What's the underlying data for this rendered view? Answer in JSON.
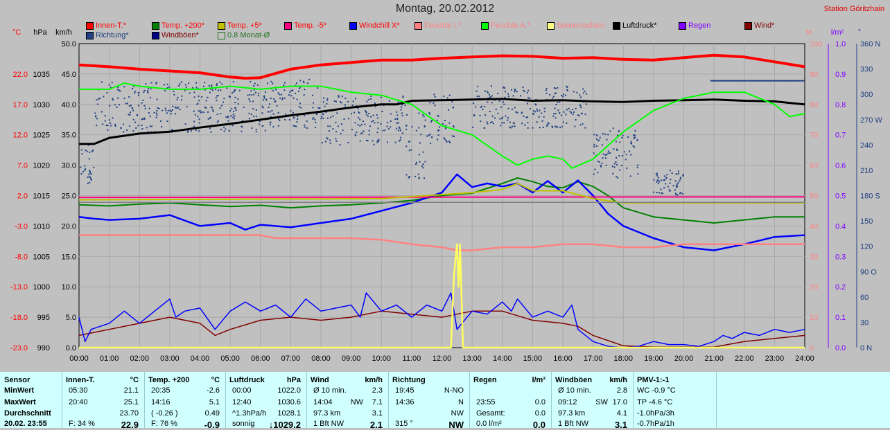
{
  "title": "Montag, 20.02.2012",
  "station": "Station Göritzhain",
  "legend": [
    {
      "label": "Innen-T.*",
      "color": "#ff0000",
      "text_color": "#ff0000"
    },
    {
      "label": "Temp. +200*",
      "color": "#008000",
      "text_color": "#ff0000"
    },
    {
      "label": "Temp. +5*",
      "color": "#c0c000",
      "text_color": "#ff0000"
    },
    {
      "label": "Temp. -5*",
      "color": "#ff0080",
      "text_color": "#ff0000"
    },
    {
      "label": "Windchill X*",
      "color": "#0000ff",
      "text_color": "#ff0000"
    },
    {
      "label": "Feuchte I.*",
      "color": "#ff8080",
      "text_color": "#ff8080"
    },
    {
      "label": "Feuchte A.*",
      "color": "#00ff00",
      "text_color": "#ff8080"
    },
    {
      "label": "Sonnenschein",
      "color": "#ffff80",
      "text_color": "#ff8080"
    },
    {
      "label": "Luftdruck*",
      "color": "#000000",
      "text_color": "#000000"
    },
    {
      "label": "Regen",
      "color": "#8000ff",
      "text_color": "#8000ff"
    },
    {
      "label": "Wind*",
      "color": "#800000",
      "text_color": "#800000"
    },
    {
      "label": "Richtung*",
      "color": "#204080",
      "text_color": "#204080"
    },
    {
      "label": "Windböen*",
      "color": "#000080",
      "text_color": "#800000"
    },
    {
      "label": "0.8 Monat-Ø",
      "color": "#207020",
      "text_color": "#207020",
      "open": true
    }
  ],
  "axis_units": {
    "temp": "°C",
    "hpa": "hPa",
    "kmh": "km/h",
    "pct": "%",
    "lm2": "l/m²",
    "deg": "°"
  },
  "chart_data": {
    "type": "line",
    "title": "Montag, 20.02.2012",
    "x_ticks": [
      "00:00",
      "01:00",
      "02:00",
      "03:00",
      "04:00",
      "05:00",
      "06:00",
      "07:00",
      "08:00",
      "09:00",
      "10:00",
      "11:00",
      "12:00",
      "13:00",
      "14:00",
      "15:00",
      "16:00",
      "17:00",
      "18:00",
      "19:00",
      "20:00",
      "21:00",
      "22:00",
      "23:00",
      "24:00"
    ],
    "axes": {
      "temp": {
        "range": [
          -23,
          27
        ],
        "ticks": [
          "22.0",
          "17.0",
          "12.0",
          "7.0",
          "2.0",
          "-3.0",
          "-8.0",
          "-13.0",
          "-18.0",
          "-23.0"
        ]
      },
      "hpa": {
        "range": [
          990,
          1040
        ],
        "ticks": [
          "1035",
          "1030",
          "1025",
          "1020",
          "1015",
          "1010",
          "1005",
          "1000",
          "995",
          "990"
        ]
      },
      "kmh": {
        "range": [
          0,
          50
        ],
        "ticks": [
          "50.0",
          "45.0",
          "40.0",
          "35.0",
          "30.0",
          "25.0",
          "20.0",
          "15.0",
          "10.0",
          "5.0",
          "0.0"
        ]
      },
      "pct": {
        "range": [
          0,
          100
        ],
        "ticks": [
          "100",
          "90",
          "80",
          "70",
          "60",
          "50",
          "40",
          "30",
          "20",
          "10",
          "0"
        ]
      },
      "lm2": {
        "range": [
          0,
          1
        ],
        "ticks": [
          "1.0",
          "0.9",
          "0.8",
          "0.7",
          "0.6",
          "0.5",
          "0.4",
          "0.3",
          "0.2",
          "0.1",
          "0.0"
        ]
      },
      "deg": {
        "range": [
          0,
          360
        ],
        "ticks": [
          "360 N",
          "330",
          "300",
          "270 W",
          "240",
          "210",
          "180 S",
          "150",
          "120",
          "90 O",
          "60",
          "30",
          "0 N"
        ]
      }
    },
    "series": [
      {
        "name": "Innen-T.*",
        "axis": "temp",
        "color": "#ff0000",
        "width": 4,
        "x": [
          0,
          1,
          2,
          3,
          4,
          5,
          5.5,
          6,
          7,
          8,
          9,
          10,
          11,
          12,
          13,
          14,
          15,
          16,
          17,
          18,
          19,
          20,
          21,
          22,
          23,
          24
        ],
        "y": [
          23.5,
          23.2,
          22.8,
          22.5,
          22.2,
          21.5,
          21.3,
          21.4,
          22.8,
          23.5,
          23.9,
          24.3,
          24.3,
          24.6,
          24.8,
          25.0,
          24.9,
          24.6,
          24.7,
          24.4,
          24.3,
          24.7,
          25.1,
          24.8,
          24.0,
          23.2
        ]
      },
      {
        "name": "Luftdruck*",
        "axis": "hpa",
        "color": "#000000",
        "width": 3,
        "x": [
          0,
          0.5,
          1,
          2,
          3,
          4,
          5,
          6,
          7,
          8,
          9,
          10,
          10.5,
          11,
          12,
          13,
          14,
          15,
          16,
          17,
          18,
          19,
          20,
          21,
          22,
          23,
          24
        ],
        "y": [
          1023.5,
          1023.5,
          1024.5,
          1025.2,
          1025.5,
          1026.2,
          1026.8,
          1027.5,
          1028.2,
          1028.8,
          1029.5,
          1030.0,
          1030.0,
          1030.6,
          1030.7,
          1030.8,
          1030.9,
          1030.6,
          1030.7,
          1030.5,
          1030.4,
          1030.6,
          1030.7,
          1030.8,
          1030.6,
          1030.5,
          1030.0
        ]
      },
      {
        "name": "Feuchte A.*",
        "axis": "pct",
        "color": "#00ff00",
        "width": 2,
        "x": [
          0,
          0.5,
          1,
          1.5,
          2,
          3,
          4,
          5,
          6,
          7,
          8,
          9,
          10,
          11,
          12,
          13,
          14,
          14.5,
          15,
          15.5,
          16,
          16.3,
          17,
          18,
          19,
          20,
          21,
          22,
          23,
          23.5,
          24
        ],
        "y": [
          85,
          85,
          85,
          87,
          86,
          85,
          85,
          86,
          85,
          86,
          86,
          84,
          83,
          80,
          73,
          70,
          63,
          60,
          62,
          63,
          62,
          59,
          62,
          71,
          78,
          82,
          84,
          84,
          80,
          76,
          77
        ]
      },
      {
        "name": "Temp. +200*",
        "axis": "temp",
        "color": "#008000",
        "width": 2,
        "x": [
          0,
          1,
          2,
          3,
          4,
          5,
          6,
          7,
          8,
          9,
          10,
          11,
          12,
          13,
          14,
          14.5,
          15,
          15.5,
          16,
          16.5,
          17,
          17.5,
          18,
          19,
          20,
          21,
          22,
          23,
          24
        ],
        "y": [
          0.5,
          0.3,
          0.6,
          0.8,
          0.5,
          0.2,
          0.4,
          0.0,
          0.3,
          0.5,
          0.8,
          1.2,
          2.0,
          2.4,
          4.0,
          4.9,
          4.3,
          3.5,
          3.3,
          4.3,
          3.5,
          2.0,
          0.0,
          -1.5,
          -2.0,
          -2.5,
          -2.0,
          -1.5,
          -1.5
        ]
      },
      {
        "name": "Windchill X*",
        "axis": "temp",
        "color": "#0000ff",
        "width": 2.5,
        "x": [
          0,
          0.5,
          1,
          2,
          3,
          4,
          5,
          5.5,
          6,
          7,
          8,
          9,
          10,
          11,
          12,
          12.5,
          13,
          13.5,
          14,
          14.5,
          15,
          15.5,
          16,
          16.5,
          17,
          17.5,
          18,
          19,
          20,
          21,
          22,
          23,
          24
        ],
        "y": [
          -1.5,
          -1.8,
          -2.0,
          -1.8,
          -1.2,
          -3.0,
          -2.5,
          -3.6,
          -2.8,
          -3.2,
          -2.5,
          -1.8,
          -0.5,
          0.8,
          2.5,
          5.5,
          3.4,
          4.0,
          3.5,
          4.0,
          2.5,
          4.4,
          2.5,
          4.5,
          2.0,
          -1.0,
          -3.0,
          -5.0,
          -6.5,
          -7.0,
          -6.0,
          -4.8,
          -4.5
        ]
      },
      {
        "name": "Temp. -5*",
        "axis": "temp",
        "color": "#ff0080",
        "width": 2,
        "x": [
          0,
          24
        ],
        "y": [
          1.7,
          1.8
        ]
      },
      {
        "name": "Temp. +5*",
        "axis": "temp",
        "color": "#c0c000",
        "width": 2,
        "x": [
          0,
          10,
          13,
          14,
          14.5,
          15,
          16,
          17,
          18,
          24
        ],
        "y": [
          1.3,
          1.5,
          2.5,
          3.0,
          4.0,
          2.8,
          2.8,
          1.5,
          0.8,
          0.8
        ]
      },
      {
        "name": "0.8 Monat-Ø",
        "axis": "temp",
        "color": "#808080",
        "width": 1.5,
        "x": [
          0,
          24
        ],
        "y": [
          0.9,
          0.9
        ]
      },
      {
        "name": "Feuchte I.*",
        "axis": "pct",
        "color": "#ff8080",
        "width": 2.5,
        "x": [
          0,
          1,
          2,
          3,
          4,
          5,
          6,
          6.5,
          7,
          8,
          9,
          10,
          11,
          12,
          12.5,
          13,
          14,
          15,
          16,
          17,
          18,
          19,
          20,
          21,
          22,
          23,
          24
        ],
        "y": [
          37,
          37,
          37,
          37,
          37,
          37,
          37,
          36,
          36,
          36,
          36,
          35.5,
          34,
          33,
          32,
          32,
          33,
          33,
          34,
          34,
          33,
          33,
          34,
          34,
          34,
          34,
          34
        ]
      },
      {
        "name": "Wind*",
        "axis": "kmh",
        "color": "#800000",
        "width": 1.5,
        "x": [
          0,
          1,
          2,
          3,
          4,
          4.5,
          5,
          6,
          7,
          8,
          9,
          10,
          11,
          12,
          12.5,
          13,
          14,
          15,
          16,
          16.5,
          17,
          18,
          19,
          20,
          21,
          22,
          23,
          24
        ],
        "y": [
          2.0,
          3.0,
          4.0,
          5.0,
          4.0,
          2.0,
          3.0,
          4.5,
          5.0,
          4.5,
          5.0,
          6.0,
          5.5,
          5.0,
          5.5,
          6.0,
          6.0,
          4.5,
          4.0,
          3.5,
          2.0,
          0.3,
          0.1,
          0.1,
          0.1,
          1.0,
          1.5,
          2.0
        ]
      },
      {
        "name": "Windböen*",
        "axis": "kmh",
        "color": "#0000ff",
        "width": 1.5,
        "x": [
          0,
          0.2,
          0.4,
          1,
          1.5,
          2,
          2.5,
          3,
          3.2,
          3.5,
          4,
          4.5,
          5,
          5.5,
          6,
          6.5,
          7,
          7.5,
          8,
          8.5,
          9,
          9.3,
          9.5,
          10,
          10.5,
          11,
          11.5,
          12,
          12.3,
          12.5,
          13,
          13.5,
          14,
          14.3,
          14.5,
          15,
          15.5,
          16,
          16.3,
          16.5,
          17,
          17.5,
          18,
          18.5,
          19,
          19.5,
          20,
          20.5,
          21,
          21.3,
          21.6,
          22,
          22.5,
          23,
          23.5,
          24
        ],
        "y": [
          5.0,
          1.0,
          3.0,
          4.0,
          6.0,
          4.0,
          6.0,
          8.0,
          5.0,
          6.0,
          6.5,
          3.0,
          6.0,
          7.5,
          6.0,
          7.0,
          5.0,
          8.0,
          6.0,
          6.5,
          7.0,
          5.0,
          9.0,
          6.0,
          7.0,
          5.0,
          7.0,
          6.0,
          9.0,
          3.0,
          6.0,
          5.5,
          7.5,
          6.0,
          8.0,
          5.0,
          6.0,
          5.0,
          7.0,
          3.0,
          1.0,
          0.2,
          0.0,
          0.2,
          1.0,
          0.5,
          0.5,
          0.2,
          1.0,
          2.0,
          1.5,
          2.5,
          2.0,
          3.0,
          2.5,
          3.0
        ]
      },
      {
        "name": "Sonnenschein",
        "axis": "kmh",
        "color": "#ffff60",
        "width": 2.5,
        "x": [
          0,
          12.3,
          12.4,
          12.5,
          12.55,
          12.6,
          12.7,
          24
        ],
        "y": [
          0,
          0,
          12,
          17,
          10,
          17,
          0,
          0
        ]
      }
    ],
    "richtung_scatter": {
      "axis": "deg",
      "color": "#204080",
      "xrange": [
        0,
        24
      ],
      "ymin": 120,
      "ymax": 330,
      "segments": [
        {
          "x0": 0.0,
          "x1": 0.5,
          "y0": 190,
          "y1": 240
        },
        {
          "x0": 0.5,
          "x1": 6.3,
          "y0": 255,
          "y1": 315
        },
        {
          "x0": 6.3,
          "x1": 8.0,
          "y0": 260,
          "y1": 320
        },
        {
          "x0": 8.0,
          "x1": 10.8,
          "y0": 240,
          "y1": 300
        },
        {
          "x0": 10.8,
          "x1": 11.5,
          "y0": 200,
          "y1": 280
        },
        {
          "x0": 11.5,
          "x1": 12.4,
          "y0": 240,
          "y1": 300
        },
        {
          "x0": 13.0,
          "x1": 16.8,
          "y0": 260,
          "y1": 310
        },
        {
          "x0": 17.0,
          "x1": 18.5,
          "y0": 200,
          "y1": 260
        },
        {
          "x0": 19.0,
          "x1": 20.0,
          "y0": 180,
          "y1": 210
        },
        {
          "x0": 20.9,
          "x1": 24.0,
          "y0": 316,
          "y1": 316
        }
      ]
    }
  },
  "stats": {
    "columns": [
      {
        "header": "Sensor",
        "unit": "",
        "rows": [
          {
            "label": "MinWert"
          },
          {
            "label": "MaxWert"
          },
          {
            "label": "Durchschnitt"
          },
          {
            "label": "20.02. 23:55"
          }
        ]
      },
      {
        "header": "Innen-T.",
        "unit": "°C",
        "rows": [
          {
            "a": "05:30",
            "b": "21.1"
          },
          {
            "a": "20:40",
            "b": "25.1"
          },
          {
            "a": "",
            "b": "23.70"
          },
          {
            "a": "F: 34 %",
            "b": "22.9"
          }
        ]
      },
      {
        "header": "Temp. +200",
        "unit": "°C",
        "rows": [
          {
            "a": "20:35",
            "b": "-2.6"
          },
          {
            "a": "14:16",
            "b": "5.1"
          },
          {
            "a": "( -0.26 )",
            "b": "0.49"
          },
          {
            "a": "F: 76 %",
            "b": "-0.9"
          }
        ]
      },
      {
        "header": "Luftdruck",
        "unit": "hPa",
        "rows": [
          {
            "a": "00:00",
            "b": "1022.0"
          },
          {
            "a": "12:40",
            "b": "1030.6"
          },
          {
            "a": "^1.3hPa/h",
            "b": "1028.1"
          },
          {
            "a": "sonnig",
            "b": "↓1029.2"
          }
        ]
      },
      {
        "header": "Wind",
        "unit": "km/h",
        "rows": [
          {
            "a": "Ø 10 min.",
            "b": "2.3"
          },
          {
            "a": "14:04",
            "m": "NW",
            "b": "7.1"
          },
          {
            "a": "97.3 km",
            "b": "3.1"
          },
          {
            "a": "1 Bft NW",
            "b": "2.1"
          }
        ]
      },
      {
        "header": "Richtung",
        "unit": "",
        "rows": [
          {
            "a": "19:45",
            "b": "N-NO"
          },
          {
            "a": "14:36",
            "b": "N"
          },
          {
            "a": "",
            "b": "NW"
          },
          {
            "a": "315 °",
            "b": "NW"
          }
        ]
      },
      {
        "header": "Regen",
        "unit": "l/m²",
        "rows": [
          {
            "a": "",
            "b": ""
          },
          {
            "a": "23:55",
            "b": "0.0"
          },
          {
            "a": "Gesamt:",
            "b": "0.0"
          },
          {
            "a": "0.0 l/m²",
            "b": "0.0"
          }
        ]
      },
      {
        "header": "Windböen",
        "unit": "km/h",
        "rows": [
          {
            "a": "Ø 10 min.",
            "b": "2.8"
          },
          {
            "a": "09:12",
            "m": "SW",
            "b": "17.0"
          },
          {
            "a": "97.3 km",
            "b": "4.1"
          },
          {
            "a": "1 Bft NW",
            "b": "3.1"
          }
        ]
      },
      {
        "header": "PMV-1:-1",
        "unit": "",
        "rows": [
          {
            "a": "WC -0.9 °C"
          },
          {
            "a": "TP -4.6 °C"
          },
          {
            "a": "-1.0hPa/3h"
          },
          {
            "a": "-0.7hPa/1h"
          }
        ]
      }
    ]
  }
}
